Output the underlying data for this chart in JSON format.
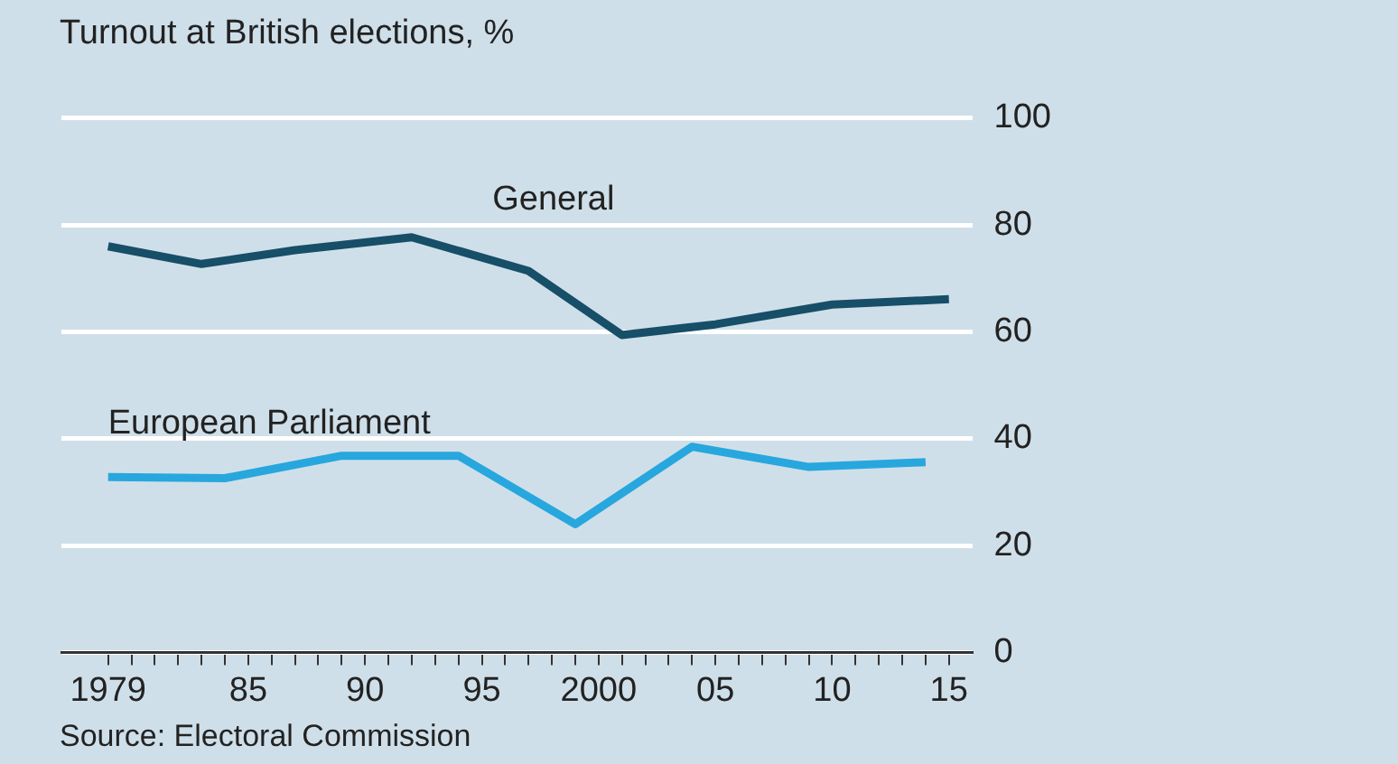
{
  "chart_data": {
    "type": "line",
    "title": "Turnout at British elections, %",
    "annotations": [
      "Source: Electoral Commission"
    ],
    "series": [
      {
        "name": "General",
        "color": "#174e68",
        "x": [
          1979,
          1983,
          1987,
          1992,
          1997,
          2001,
          2005,
          2010,
          2015
        ],
        "values": [
          76,
          72.7,
          75.3,
          77.7,
          71.4,
          59.4,
          61.4,
          65.1,
          66.1
        ]
      },
      {
        "name": "European Parliament",
        "color": "#27a7dd",
        "x": [
          1979,
          1984,
          1989,
          1994,
          1999,
          2004,
          2009,
          2014
        ],
        "values": [
          32.8,
          32.6,
          36.8,
          36.8,
          24,
          38.5,
          34.7,
          35.6
        ]
      }
    ],
    "xlim": [
      1977,
      2016
    ],
    "xticks": [
      {
        "value": 1979,
        "label": "1979"
      },
      {
        "value": 1980,
        "label": null
      },
      {
        "value": 1981,
        "label": null
      },
      {
        "value": 1982,
        "label": null
      },
      {
        "value": 1983,
        "label": null
      },
      {
        "value": 1984,
        "label": null
      },
      {
        "value": 1985,
        "label": "85"
      },
      {
        "value": 1986,
        "label": null
      },
      {
        "value": 1987,
        "label": null
      },
      {
        "value": 1988,
        "label": null
      },
      {
        "value": 1989,
        "label": null
      },
      {
        "value": 1990,
        "label": "90"
      },
      {
        "value": 1991,
        "label": null
      },
      {
        "value": 1992,
        "label": null
      },
      {
        "value": 1993,
        "label": null
      },
      {
        "value": 1994,
        "label": null
      },
      {
        "value": 1995,
        "label": "95"
      },
      {
        "value": 1996,
        "label": null
      },
      {
        "value": 1997,
        "label": null
      },
      {
        "value": 1998,
        "label": null
      },
      {
        "value": 1999,
        "label": null
      },
      {
        "value": 2000,
        "label": "2000"
      },
      {
        "value": 2001,
        "label": null
      },
      {
        "value": 2002,
        "label": null
      },
      {
        "value": 2003,
        "label": null
      },
      {
        "value": 2004,
        "label": null
      },
      {
        "value": 2005,
        "label": "05"
      },
      {
        "value": 2006,
        "label": null
      },
      {
        "value": 2007,
        "label": null
      },
      {
        "value": 2008,
        "label": null
      },
      {
        "value": 2009,
        "label": null
      },
      {
        "value": 2010,
        "label": "10"
      },
      {
        "value": 2011,
        "label": null
      },
      {
        "value": 2012,
        "label": null
      },
      {
        "value": 2013,
        "label": null
      },
      {
        "value": 2014,
        "label": null
      },
      {
        "value": 2015,
        "label": "15"
      }
    ],
    "ylim": [
      0,
      100
    ],
    "yticks": [
      0,
      20,
      40,
      60,
      80,
      100
    ],
    "grid": "y",
    "legend": false,
    "marker": "none",
    "line_style": "solid"
  }
}
